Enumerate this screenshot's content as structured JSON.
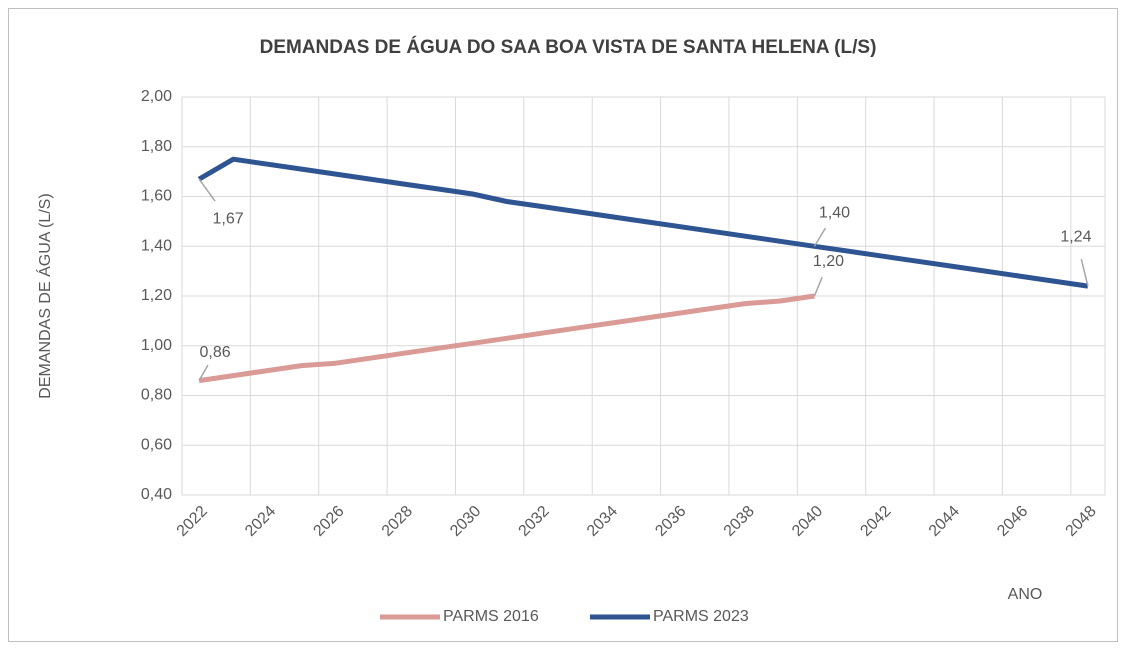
{
  "chart_data": {
    "type": "line",
    "title": "DEMANDAS DE ÁGUA DO SAA BOA VISTA DE SANTA HELENA (L/S)",
    "y_label": "DEMANDAS DE ÁGUA (L/S)",
    "x_label": "ANO",
    "categories": [
      "2022",
      null,
      "2024",
      null,
      "2026",
      null,
      "2028",
      null,
      "2030",
      null,
      "2032",
      null,
      "2034",
      null,
      "2036",
      null,
      "2038",
      null,
      "2040",
      null,
      "2042",
      null,
      "2044",
      null,
      "2046",
      null,
      "2048"
    ],
    "series": [
      {
        "name": "PARMS 2016",
        "color": "#da9a95",
        "values": [
          0.86,
          0.88,
          0.9,
          0.92,
          0.93,
          0.95,
          0.97,
          0.99,
          1.01,
          1.03,
          1.05,
          1.07,
          1.09,
          1.11,
          1.13,
          1.15,
          1.17,
          1.18,
          1.2,
          null,
          null,
          null,
          null,
          null,
          null,
          null,
          null
        ],
        "value_labels": [
          "0,86",
          null,
          null,
          null,
          null,
          null,
          null,
          null,
          null,
          null,
          null,
          null,
          null,
          null,
          null,
          null,
          null,
          null,
          "1,20",
          null,
          null,
          null,
          null,
          null,
          null,
          null,
          null
        ]
      },
      {
        "name": "PARMS 2023",
        "color": "#2e5592",
        "values": [
          1.67,
          1.75,
          1.73,
          1.71,
          1.69,
          1.67,
          1.65,
          1.63,
          1.61,
          1.58,
          1.56,
          1.54,
          1.52,
          1.5,
          1.48,
          1.46,
          1.44,
          1.42,
          1.4,
          1.38,
          1.36,
          1.34,
          1.32,
          1.3,
          1.28,
          1.26,
          1.24
        ],
        "value_labels": [
          "1,67",
          null,
          null,
          null,
          null,
          null,
          null,
          null,
          null,
          null,
          null,
          null,
          null,
          null,
          null,
          null,
          null,
          null,
          "1,40",
          null,
          null,
          null,
          null,
          null,
          null,
          null,
          "1,24"
        ]
      }
    ],
    "ylim": [
      0.4,
      2.0
    ],
    "yticks": [
      {
        "value": 0.4,
        "label": "0,40"
      },
      {
        "value": 0.6,
        "label": "0,60"
      },
      {
        "value": 0.8,
        "label": "0,80"
      },
      {
        "value": 1.0,
        "label": "1,00"
      },
      {
        "value": 1.2,
        "label": "1,20"
      },
      {
        "value": 1.4,
        "label": "1,40"
      },
      {
        "value": 1.6,
        "label": "1,60"
      },
      {
        "value": 1.8,
        "label": "1,80"
      },
      {
        "value": 2.0,
        "label": "2,00"
      }
    ],
    "grid": true,
    "legend": "bottom"
  }
}
